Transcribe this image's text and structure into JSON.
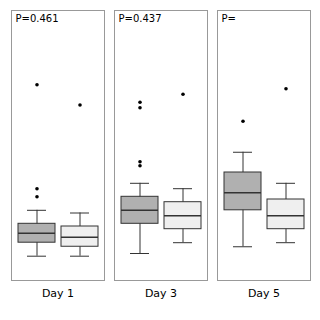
{
  "chart_data": {
    "type": "box",
    "categories": [
      "Day 1",
      "Day 3",
      "Day 5"
    ],
    "series": [
      {
        "color": "#b0b0b0",
        "values": [
          {
            "q1": 28,
            "median": 35,
            "q3": 42,
            "whislo": 18,
            "whishi": 52,
            "fliers": [
              68,
              62,
              145
            ]
          },
          {
            "q1": 42,
            "median": 52,
            "q3": 62,
            "whislo": 20,
            "whishi": 72,
            "fliers": [
              88,
              85,
              132,
              128
            ]
          },
          {
            "q1": 52,
            "median": 65,
            "q3": 80,
            "whislo": 25,
            "whishi": 95,
            "fliers": [
              118
            ]
          }
        ]
      },
      {
        "color": "#efefef",
        "values": [
          {
            "q1": 25,
            "median": 32,
            "q3": 40,
            "whislo": 18,
            "whishi": 50,
            "fliers": [
              130
            ]
          },
          {
            "q1": 38,
            "median": 48,
            "q3": 58,
            "whislo": 28,
            "whishi": 68,
            "fliers": [
              138
            ]
          },
          {
            "q1": 38,
            "median": 48,
            "q3": 60,
            "whislo": 28,
            "whishi": 72,
            "fliers": [
              142
            ]
          }
        ]
      }
    ],
    "annotations": [
      "P=0.461",
      "P=0.437",
      "P="
    ],
    "ylim": [
      0,
      200
    ],
    "tick_labels": "x"
  }
}
